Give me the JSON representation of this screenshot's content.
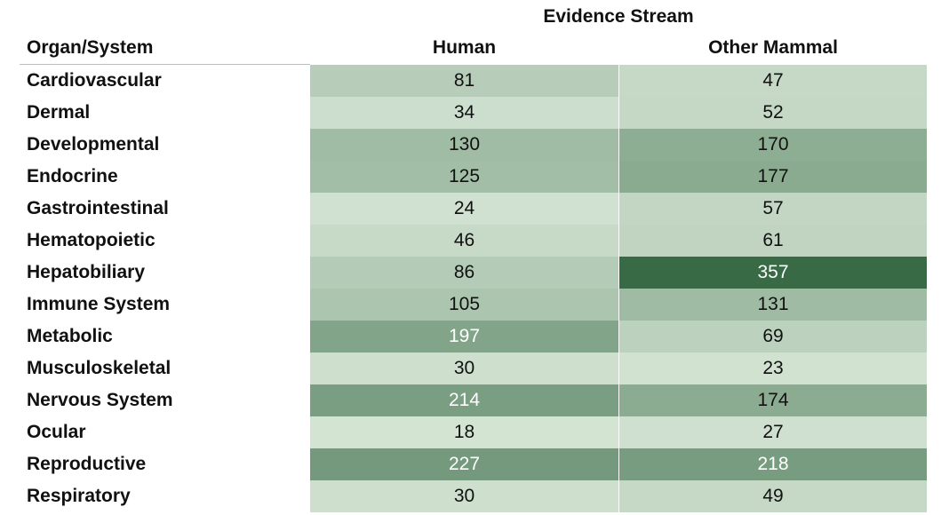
{
  "chart_data": {
    "type": "heatmap",
    "title": "Evidence Stream",
    "row_header": "Organ/System",
    "columns": [
      "Human",
      "Other Mammal"
    ],
    "rows": [
      "Cardiovascular",
      "Dermal",
      "Developmental",
      "Endocrine",
      "Gastrointestinal",
      "Hematopoietic",
      "Hepatobiliary",
      "Immune System",
      "Metabolic",
      "Musculoskeletal",
      "Nervous System",
      "Ocular",
      "Reproductive",
      "Respiratory"
    ],
    "values": [
      [
        81,
        47
      ],
      [
        34,
        52
      ],
      [
        130,
        170
      ],
      [
        125,
        177
      ],
      [
        24,
        57
      ],
      [
        46,
        61
      ],
      [
        86,
        357
      ],
      [
        105,
        131
      ],
      [
        197,
        69
      ],
      [
        30,
        23
      ],
      [
        214,
        174
      ],
      [
        18,
        27
      ],
      [
        227,
        218
      ],
      [
        30,
        49
      ]
    ],
    "color_scale": {
      "low": "#dceadb",
      "high": "#386b45"
    }
  }
}
